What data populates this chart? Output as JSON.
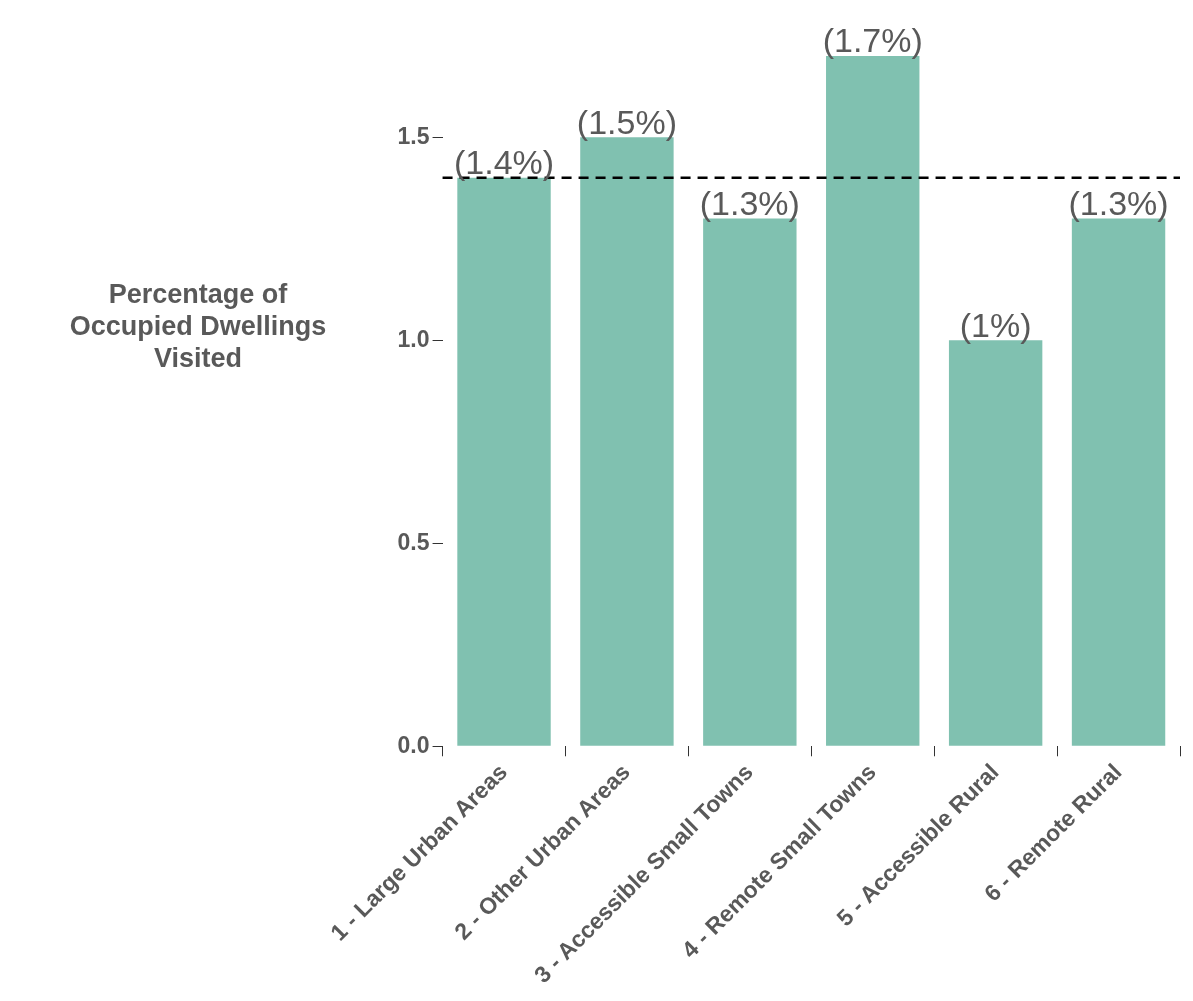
{
  "chart_data": {
    "type": "bar",
    "ylabel": "Percentage of Occupied Dwellings Visited",
    "categories": [
      "1 - Large Urban Areas",
      "2 - Other Urban Areas",
      "3 - Accessible Small Towns",
      "4 - Remote Small Towns",
      "5 - Accessible Rural",
      "6 - Remote Rural"
    ],
    "values": [
      1.4,
      1.5,
      1.3,
      1.7,
      1.0,
      1.3
    ],
    "value_labels": [
      "(1.4%)",
      "(1.5%)",
      "(1.3%)",
      "(1.7%)",
      "(1%)",
      "(1.3%)"
    ],
    "color": "#80c1b0",
    "ylim": [
      0,
      1.7
    ],
    "yticks": [
      {
        "value": 0,
        "label": "0.0"
      },
      0.5,
      {
        "value": 1,
        "label": "1.0"
      },
      1.5
    ],
    "ref_lines": [
      {
        "axis": "y",
        "value": 1.4,
        "label": null,
        "color": "#000000",
        "line_style": "dashed"
      }
    ],
    "grid": false,
    "legend": false
  }
}
